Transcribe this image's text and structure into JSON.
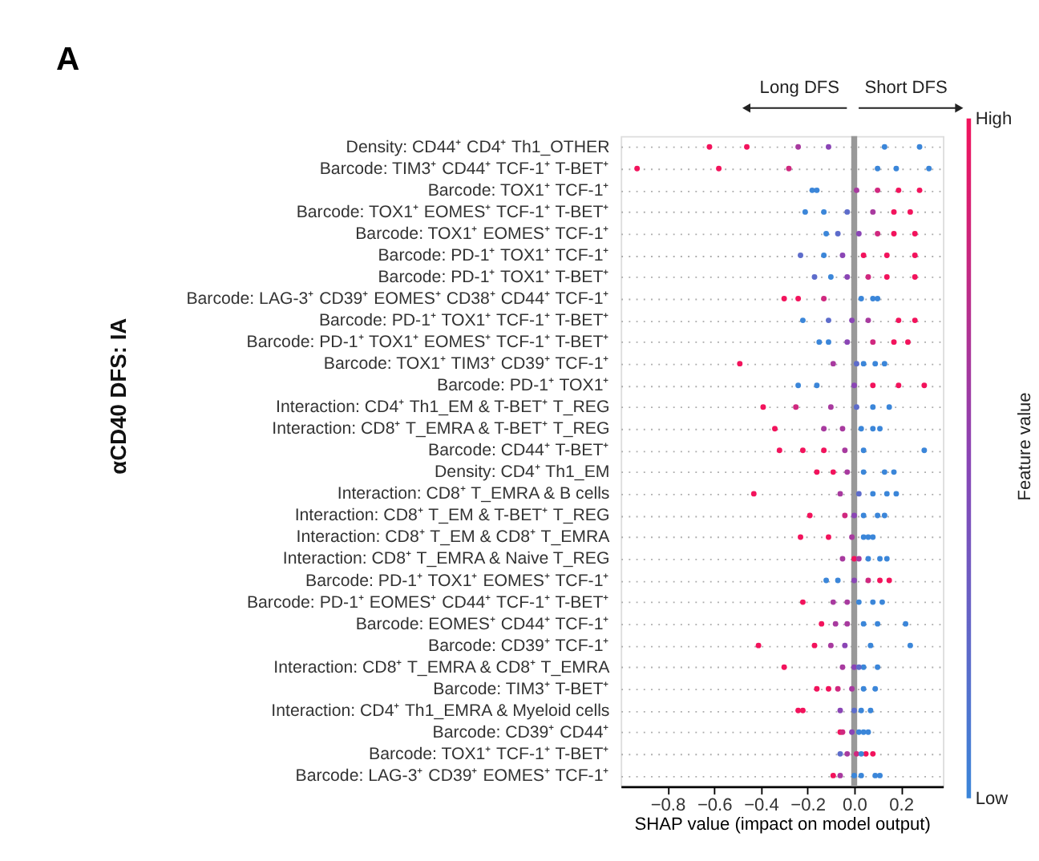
{
  "chart_data": {
    "type": "scatter",
    "orientation": "horizontal",
    "xlabel": "SHAP value (impact on model output)",
    "clabel": "Feature value",
    "annotations": [
      "A",
      "αCD40 DFS: IA",
      "Long DFS",
      "Short DFS",
      "High",
      "Low"
    ],
    "categories": [
      "Density: CD44⁺ CD4⁺ Th1_OTHER",
      "Barcode: TIM3⁺ CD44⁺ TCF-1⁺ T-BET⁺",
      "Barcode: TOX1⁺ TCF-1⁺",
      "Barcode: TOX1⁺ EOMES⁺ TCF-1⁺ T-BET⁺",
      "Barcode: TOX1⁺ EOMES⁺ TCF-1⁺",
      "Barcode: PD-1⁺ TOX1⁺ TCF-1⁺",
      "Barcode: PD-1⁺ TOX1⁺ T-BET⁺",
      "Barcode: LAG-3⁺ CD39⁺ EOMES⁺ CD38⁺ CD44⁺ TCF-1⁺",
      "Barcode: PD-1⁺ TOX1⁺ TCF-1⁺ T-BET⁺",
      "Barcode: PD-1⁺ TOX1⁺ EOMES⁺ TCF-1⁺ T-BET⁺",
      "Barcode: TOX1⁺ TIM3⁺ CD39⁺ TCF-1⁺",
      "Barcode: PD-1⁺ TOX1⁺",
      "Interaction: CD4⁺ Th1_EM & T-BET⁺ T_REG",
      "Interaction: CD8⁺ T_EMRA & T-BET⁺ T_REG",
      "Barcode: CD44⁺ T-BET⁺",
      "Density: CD4⁺ Th1_EM",
      "Interaction: CD8⁺ T_EMRA & B cells",
      "Interaction: CD8⁺ T_EM & T-BET⁺ T_REG",
      "Interaction: CD8⁺ T_EM & CD8⁺ T_EMRA",
      "Interaction: CD8⁺ T_EMRA & Naive T_REG",
      "Barcode: PD-1⁺ TOX1⁺ EOMES⁺ TCF-1⁺",
      "Barcode: PD-1⁺ EOMES⁺ CD44⁺ TCF-1⁺ T-BET⁺",
      "Barcode: EOMES⁺ CD44⁺ TCF-1⁺",
      "Barcode: CD39⁺ TCF-1⁺",
      "Interaction: CD8⁺ T_EMRA & CD8⁺ T_EMRA",
      "Barcode: TIM3⁺ T-BET⁺",
      "Interaction: CD4⁺ Th1_EMRA & Myeloid cells",
      "Barcode: CD39⁺ CD44⁺",
      "Barcode: TOX1⁺ TCF-1⁺ T-BET⁺",
      "Barcode: LAG-3⁺ CD39⁺ EOMES⁺ TCF-1⁺"
    ],
    "series": [
      {
        "values": [
          -0.62,
          -0.93,
          -0.18,
          -0.21,
          -0.12,
          -0.23,
          -0.17,
          -0.3,
          -0.22,
          -0.15,
          -0.49,
          -0.24,
          -0.39,
          -0.34,
          -0.32,
          -0.16,
          -0.43,
          -0.19,
          -0.23,
          -0.05,
          -0.12,
          -0.22,
          -0.14,
          -0.41,
          -0.3,
          -0.16,
          -0.24,
          -0.06,
          -0.06,
          -0.09
        ],
        "colors": [
          "#f2135c",
          "#f2135c",
          "#3b86d9",
          "#3b86d9",
          "#3b86d9",
          "#5d6ccb",
          "#5d6ccb",
          "#f2135c",
          "#3b86d9",
          "#3b86d9",
          "#f2135c",
          "#3b86d9",
          "#f2135c",
          "#f2135c",
          "#f2135c",
          "#f2135c",
          "#f2135c",
          "#f2135c",
          "#f2135c",
          "#a83a9f",
          "#3b86d9",
          "#f2135c",
          "#f2135c",
          "#f2135c",
          "#f2135c",
          "#f2135c",
          "#f2135c",
          "#f2135c",
          "#5d6ccb",
          "#f2135c"
        ]
      },
      {
        "values": [
          -0.46,
          -0.58,
          -0.16,
          -0.13,
          -0.07,
          -0.13,
          -0.1,
          -0.24,
          -0.11,
          -0.11,
          -0.09,
          -0.16,
          -0.25,
          -0.13,
          -0.22,
          -0.09,
          -0.06,
          -0.04,
          -0.11,
          0.0,
          -0.07,
          -0.09,
          -0.08,
          -0.17,
          -0.05,
          -0.11,
          -0.22,
          -0.05,
          -0.03,
          -0.06
        ],
        "colors": [
          "#f2135c",
          "#f2135c",
          "#3b86d9",
          "#3b86d9",
          "#5d6ccb",
          "#3b86d9",
          "#3b86d9",
          "#f2135c",
          "#5d6ccb",
          "#3b86d9",
          "#a83a9f",
          "#3b86d9",
          "#d0287f",
          "#a83a9f",
          "#f2135c",
          "#f2135c",
          "#a83a9f",
          "#d0287f",
          "#f2135c",
          "#f2135c",
          "#3b86d9",
          "#a83a9f",
          "#a83a9f",
          "#f2135c",
          "#a83a9f",
          "#f2135c",
          "#f2135c",
          "#d0287f",
          "#a83a9f",
          "#a83a9f"
        ]
      },
      {
        "values": [
          -0.24,
          -0.28,
          0.01,
          -0.03,
          0.02,
          -0.05,
          -0.03,
          -0.13,
          -0.01,
          -0.03,
          0.01,
          0.0,
          -0.1,
          -0.05,
          -0.13,
          -0.03,
          0.02,
          0.0,
          -0.01,
          0.02,
          0.0,
          -0.03,
          -0.03,
          -0.1,
          0.0,
          -0.07,
          -0.06,
          -0.01,
          0.01,
          0.0
        ],
        "colors": [
          "#a83a9f",
          "#d0287f",
          "#a83a9f",
          "#5d6ccb",
          "#8a45b5",
          "#8a45b5",
          "#8a45b5",
          "#d0287f",
          "#8a45b5",
          "#8a45b5",
          "#5d6ccb",
          "#8a45b5",
          "#a83a9f",
          "#a83a9f",
          "#f2135c",
          "#a83a9f",
          "#5d6ccb",
          "#8a45b5",
          "#a83a9f",
          "#a83a9f",
          "#8a45b5",
          "#a83a9f",
          "#a83a9f",
          "#a83a9f",
          "#8a45b5",
          "#d0287f",
          "#8a45b5",
          "#8a45b5",
          "#d0287f",
          "#3b86d9"
        ]
      },
      {
        "values": [
          -0.11,
          0.1,
          0.1,
          0.08,
          0.1,
          0.04,
          0.06,
          0.03,
          0.06,
          0.08,
          0.04,
          0.08,
          0.01,
          0.03,
          -0.04,
          0.04,
          0.08,
          0.04,
          0.04,
          0.06,
          0.06,
          0.02,
          0.04,
          -0.04,
          0.04,
          -0.01,
          0.0,
          0.02,
          0.05,
          0.03
        ],
        "colors": [
          "#8a45b5",
          "#3b86d9",
          "#d0287f",
          "#a83a9f",
          "#d0287f",
          "#f2135c",
          "#d0287f",
          "#3b86d9",
          "#a83a9f",
          "#d0287f",
          "#3b86d9",
          "#f2135c",
          "#5d6ccb",
          "#3b86d9",
          "#a83a9f",
          "#3b86d9",
          "#3b86d9",
          "#3b86d9",
          "#3b86d9",
          "#3b86d9",
          "#d0287f",
          "#3b86d9",
          "#3b86d9",
          "#8a45b5",
          "#3b86d9",
          "#a83a9f",
          "#5d6ccb",
          "#3b86d9",
          "#f2135c",
          "#3b86d9"
        ]
      },
      {
        "values": [
          0.13,
          0.18,
          0.19,
          0.17,
          0.17,
          0.14,
          0.14,
          0.08,
          0.19,
          0.17,
          0.09,
          0.19,
          0.08,
          0.08,
          0.04,
          0.13,
          0.14,
          0.1,
          0.06,
          0.11,
          0.11,
          0.08,
          0.1,
          0.07,
          0.1,
          0.04,
          0.03,
          0.04,
          0.08,
          0.09
        ],
        "colors": [
          "#3b86d9",
          "#3b86d9",
          "#f2135c",
          "#f2135c",
          "#f2135c",
          "#f2135c",
          "#f2135c",
          "#3b86d9",
          "#f2135c",
          "#f2135c",
          "#3b86d9",
          "#f2135c",
          "#3b86d9",
          "#3b86d9",
          "#3b86d9",
          "#3b86d9",
          "#3b86d9",
          "#3b86d9",
          "#3b86d9",
          "#3b86d9",
          "#f2135c",
          "#3b86d9",
          "#3b86d9",
          "#3b86d9",
          "#3b86d9",
          "#3b86d9",
          "#3b86d9",
          "#3b86d9",
          "#f2135c",
          "#3b86d9"
        ]
      },
      {
        "values": [
          0.28,
          0.32,
          0.28,
          0.24,
          0.26,
          0.26,
          0.26,
          0.1,
          0.26,
          0.23,
          0.13,
          0.3,
          0.15,
          0.11,
          0.3,
          0.17,
          0.18,
          0.13,
          0.08,
          0.14,
          0.15,
          0.12,
          0.22,
          0.24,
          0.02,
          0.09,
          0.07,
          0.06,
          0.03,
          0.11
        ],
        "colors": [
          "#3b86d9",
          "#3b86d9",
          "#f2135c",
          "#f2135c",
          "#f2135c",
          "#f2135c",
          "#f2135c",
          "#3b86d9",
          "#f2135c",
          "#f2135c",
          "#3b86d9",
          "#f2135c",
          "#3b86d9",
          "#3b86d9",
          "#3b86d9",
          "#3b86d9",
          "#3b86d9",
          "#3b86d9",
          "#3b86d9",
          "#3b86d9",
          "#f2135c",
          "#3b86d9",
          "#3b86d9",
          "#3b86d9",
          "#5d6ccb",
          "#3b86d9",
          "#3b86d9",
          "#3b86d9",
          "#3b86d9",
          "#3b86d9"
        ]
      }
    ],
    "xlim": [
      -1.0,
      0.38
    ],
    "xticks": [
      {
        "value": -0.8,
        "label": "−0.8"
      },
      {
        "value": -0.6,
        "label": "−0.6"
      },
      {
        "value": -0.4,
        "label": "−0.4"
      },
      {
        "value": -0.2,
        "label": "−0.2"
      },
      {
        "value": 0.0,
        "label": "0.0"
      },
      {
        "value": 0.2,
        "label": "0.2"
      }
    ],
    "ref_lines": [
      {
        "axis": "x",
        "value": 0,
        "color": "#999999"
      }
    ],
    "grid": "y",
    "marker": "circle"
  }
}
